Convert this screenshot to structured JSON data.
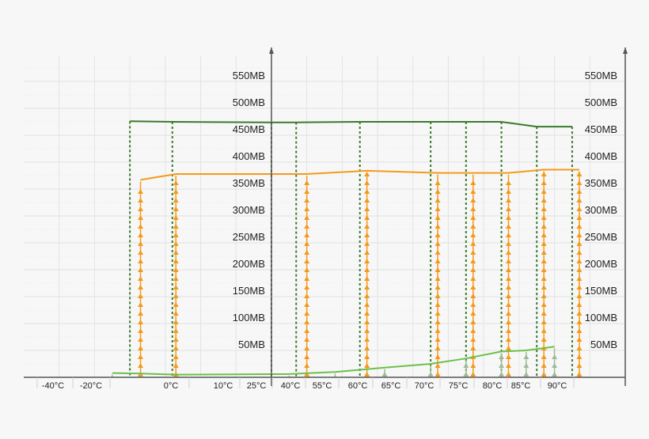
{
  "chart_data": {
    "type": "line",
    "y_ticks": [
      "50MB",
      "100MB",
      "150MB",
      "200MB",
      "250MB",
      "300MB",
      "350MB",
      "400MB",
      "450MB",
      "500MB",
      "550MB"
    ],
    "x_ticks": [
      "-40°C",
      "-20°C",
      "0°C",
      "10°C",
      "25°C",
      "40°C",
      "55°C",
      "60°C",
      "65°C",
      "70°C",
      "75°C",
      "80°C",
      "85°C",
      "90°C"
    ],
    "ylim": [
      0,
      600
    ],
    "xlim": [
      -70,
      100
    ],
    "grid": true,
    "colors": {
      "dark_green": "#3a7a2c",
      "orange": "#f39a1c",
      "light_green": "#6cc04a",
      "light_green_arrow": "#9dbb99"
    },
    "series": [
      {
        "color": "#3a7a2c",
        "style": "line-with-dotted-drops",
        "points": [
          [
            -40,
            476
          ],
          [
            -28,
            475
          ],
          [
            0,
            474
          ],
          [
            7,
            474
          ],
          [
            25,
            475
          ],
          [
            45,
            475
          ],
          [
            55,
            475
          ],
          [
            65,
            475
          ],
          [
            75,
            466
          ],
          [
            85,
            466
          ]
        ],
        "drops_x": [
          -40,
          -28,
          0,
          7,
          25,
          45,
          55,
          65,
          75,
          85
        ]
      },
      {
        "color": "#f39a1c",
        "style": "line-with-arrow-stacks",
        "points": [
          [
            -37,
            367
          ],
          [
            -27,
            378
          ],
          [
            0,
            378
          ],
          [
            10,
            378
          ],
          [
            27,
            384
          ],
          [
            47,
            380
          ],
          [
            57,
            380
          ],
          [
            67,
            380
          ],
          [
            77,
            386
          ],
          [
            87,
            386
          ]
        ],
        "arrow_x": [
          -37,
          -27,
          10,
          27,
          47,
          57,
          67,
          77,
          87
        ]
      },
      {
        "color": "#6cc04a",
        "style": "line-with-arrow-stacks",
        "points": [
          [
            -45,
            8
          ],
          [
            -37,
            7
          ],
          [
            -27,
            5
          ],
          [
            5,
            6
          ],
          [
            18,
            10
          ],
          [
            32,
            18
          ],
          [
            45,
            25
          ],
          [
            55,
            35
          ],
          [
            65,
            48
          ],
          [
            72,
            50
          ],
          [
            80,
            57
          ]
        ],
        "arrow_x": [
          -45,
          -37,
          -27,
          0,
          5,
          18,
          32,
          45,
          55,
          65,
          72,
          80
        ]
      }
    ]
  }
}
